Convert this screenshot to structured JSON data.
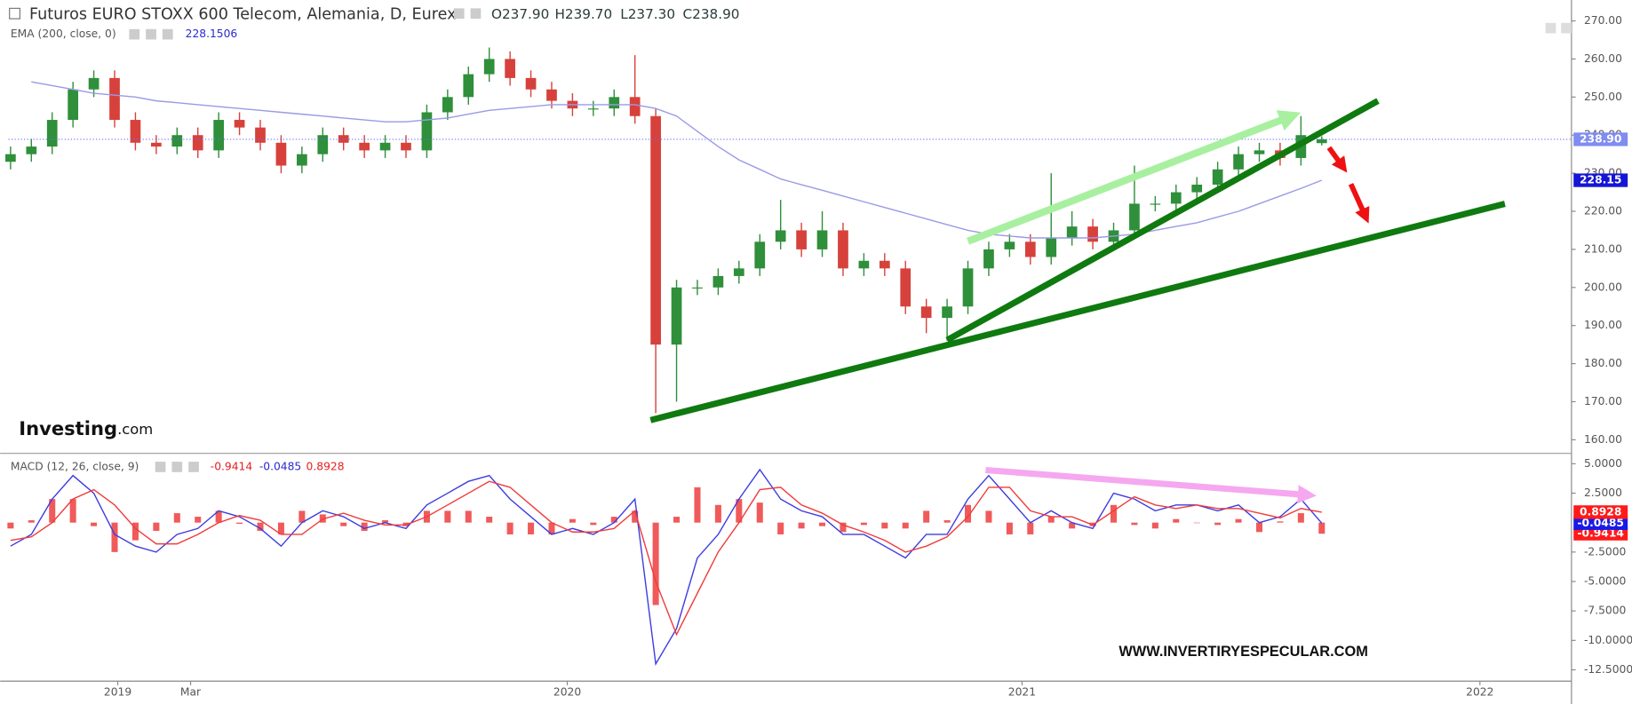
{
  "header": {
    "title": "Futuros EURO STOXX 600 Telecom, Alemania, D, Eurex",
    "ohlc": [
      "O237.90",
      "H239.70",
      "L237.30",
      "C238.90"
    ],
    "logo_bold": "Investing",
    "logo_suffix": ".com",
    "watermark": "WWW.INVERTIRYESPECULAR.COM"
  },
  "chart_data": [
    {
      "type": "candlestick",
      "xlim": [
        -0.1,
        75
      ],
      "ylim": [
        156.7,
        273.3
      ],
      "yticks": [
        {
          "value": 160,
          "label": "160.00"
        },
        {
          "value": 170,
          "label": "170.00"
        },
        {
          "value": 180,
          "label": "180.00"
        },
        {
          "value": 190,
          "label": "190.00"
        },
        {
          "value": 200,
          "label": "200.00"
        },
        {
          "value": 210,
          "label": "210.00"
        },
        {
          "value": 220,
          "label": "220.00"
        },
        {
          "value": 230,
          "label": "230.00"
        },
        {
          "value": 240,
          "label": "240.00"
        },
        {
          "value": 250,
          "label": "250.00"
        },
        {
          "value": 260,
          "label": "260.00"
        },
        {
          "value": 270,
          "label": "270.00"
        }
      ],
      "series": [
        {
          "type": "candlestick",
          "up_color": "#2f8f3a",
          "down_color": "#d7413b",
          "label_color": "#7f8cf0",
          "last_label": "238.90",
          "open": [
            233,
            235,
            237,
            244,
            252,
            255,
            244,
            238,
            237,
            240,
            236,
            244,
            242,
            238,
            232,
            235,
            240,
            238,
            236,
            238,
            236,
            246,
            250,
            256,
            260,
            255,
            252,
            249,
            247,
            247,
            250,
            245,
            185,
            200,
            200,
            203,
            205,
            212,
            215,
            210,
            215,
            205,
            207,
            205,
            195,
            192,
            195,
            205,
            210,
            212,
            208,
            213,
            216,
            212,
            215,
            222,
            222,
            225,
            227,
            231,
            235,
            236,
            234,
            237.9
          ],
          "high": [
            237,
            239,
            246,
            254,
            257,
            257,
            246,
            240,
            242,
            242,
            246,
            246,
            244,
            240,
            237,
            242,
            242,
            240,
            240,
            240,
            248,
            252,
            258,
            263,
            262,
            257,
            254,
            251,
            249,
            252,
            261,
            247,
            202,
            202,
            205,
            207,
            214,
            223,
            217,
            220,
            217,
            209,
            209,
            207,
            197,
            197,
            207,
            212,
            214,
            214,
            230,
            220,
            218,
            217,
            232,
            224,
            227,
            229,
            233,
            237,
            238,
            238,
            245,
            239.7
          ],
          "low": [
            231,
            233,
            235,
            242,
            250,
            242,
            236,
            235,
            235,
            234,
            234,
            240,
            236,
            230,
            230,
            233,
            236,
            234,
            234,
            234,
            234,
            244,
            248,
            254,
            253,
            250,
            247,
            245,
            245,
            245,
            243,
            167,
            170,
            198,
            198,
            201,
            203,
            210,
            208,
            208,
            203,
            203,
            203,
            193,
            188,
            186,
            193,
            203,
            208,
            206,
            206,
            211,
            210,
            210,
            213,
            220,
            220,
            223,
            225,
            229,
            233,
            232,
            232,
            237.3
          ],
          "close": [
            235,
            237,
            244,
            252,
            255,
            244,
            238,
            237,
            240,
            236,
            244,
            242,
            238,
            232,
            235,
            240,
            238,
            236,
            238,
            236,
            246,
            250,
            256,
            260,
            255,
            252,
            249,
            247,
            247,
            250,
            245,
            185,
            200,
            200,
            203,
            205,
            212,
            215,
            210,
            215,
            205,
            207,
            205,
            195,
            192,
            195,
            205,
            210,
            212,
            208,
            213,
            216,
            212,
            215,
            222,
            222,
            225,
            227,
            231,
            235,
            236,
            234,
            240,
            238.9
          ]
        },
        {
          "type": "line",
          "name": "EMA (200, close, 0)",
          "color": "#9a9ae6",
          "label_color": "#1515d6",
          "legend_value": "228.1506",
          "last_label": "228.15",
          "values": [
            null,
            254,
            253,
            252,
            251,
            250.5,
            250,
            249,
            248.5,
            248,
            247.5,
            247,
            246.5,
            246,
            245.5,
            245,
            244.5,
            244,
            243.5,
            243.5,
            244,
            244.5,
            245.5,
            246.5,
            247,
            247.5,
            248,
            248,
            248,
            248,
            248,
            247,
            245,
            241,
            237,
            233.5,
            231,
            228.5,
            227,
            225.5,
            224,
            222.5,
            221,
            219.5,
            218,
            216.5,
            215,
            214,
            213.5,
            213,
            213,
            213,
            213,
            213.5,
            214,
            215,
            216,
            217,
            218.5,
            220,
            222,
            224,
            226,
            228.1506
          ]
        }
      ]
    },
    {
      "type": "macd",
      "title": "MACD (12, 26, close, 9)",
      "xlim": [
        -0.1,
        75
      ],
      "ylim": [
        -13.46,
        5.79
      ],
      "yticks": [
        {
          "value": 5,
          "label": "5.0000"
        },
        {
          "value": 2.5,
          "label": "2.5000"
        },
        {
          "value": -2.5,
          "label": "-2.5000"
        },
        {
          "value": -5,
          "label": "-5.0000"
        },
        {
          "value": -7.5,
          "label": "-7.5000"
        },
        {
          "value": -10,
          "label": "-10.0000"
        },
        {
          "value": -12.5,
          "label": "-12.5000"
        }
      ],
      "xticks": [
        {
          "value": 5.15,
          "label": "2019"
        },
        {
          "value": 8.65,
          "label": "Mar"
        },
        {
          "value": 26.75,
          "label": "2020"
        },
        {
          "value": 48.6,
          "label": "2021"
        },
        {
          "value": 70.6,
          "label": "2022"
        }
      ],
      "series": [
        {
          "type": "bar",
          "color": "#f05a5a",
          "label_color": "#ff1a1a",
          "legend_value": "-0.9414",
          "values": [
            -0.5,
            0.2,
            2,
            2,
            -0.3,
            -2.5,
            -1.5,
            -0.7,
            0.8,
            0.5,
            1,
            -0.1,
            -0.7,
            -1,
            1,
            0.7,
            -0.3,
            -0.7,
            0.2,
            -0.3,
            1,
            1,
            1,
            0.5,
            -1,
            -1,
            -1,
            0.3,
            -0.2,
            0.5,
            1,
            -7,
            0.5,
            3,
            1.5,
            2,
            1.7,
            -1,
            -0.5,
            -0.3,
            -0.8,
            -0.2,
            -0.5,
            -0.5,
            1,
            0.2,
            1.5,
            1,
            -1,
            -1,
            0.5,
            -0.5,
            -0.3,
            1.5,
            -0.2,
            -0.5,
            0.3,
            0,
            -0.2,
            0.3,
            -0.8,
            0.1,
            0.8,
            -0.9414
          ]
        },
        {
          "type": "line",
          "color": "#3d3de0",
          "label_color": "#1a1ae6",
          "legend_value": "-0.0485",
          "values": [
            -2,
            -1,
            2,
            4,
            2.5,
            -1,
            -2,
            -2.5,
            -1,
            -0.5,
            1,
            0.5,
            -0.5,
            -2,
            0,
            1,
            0.5,
            -0.5,
            0,
            -0.5,
            1.5,
            2.5,
            3.5,
            4,
            2,
            0.5,
            -1,
            -0.5,
            -1,
            0,
            2,
            -12,
            -9,
            -3,
            -1,
            2,
            4.5,
            2,
            1,
            0.5,
            -1,
            -1,
            -2,
            -3,
            -1,
            -1,
            2,
            4,
            2,
            0,
            1,
            0,
            -0.5,
            2.5,
            2,
            1,
            1.5,
            1.5,
            1,
            1.5,
            0,
            0.5,
            2,
            -0.0485
          ]
        },
        {
          "type": "line",
          "color": "#f03c3c",
          "label_color": "#ff1a1a",
          "legend_value": "0.8928",
          "values": [
            -1.5,
            -1.2,
            0,
            2,
            2.8,
            1.5,
            -0.5,
            -1.8,
            -1.8,
            -1,
            0,
            0.6,
            0.2,
            -1,
            -1,
            0.3,
            0.8,
            0.2,
            -0.2,
            -0.2,
            0.5,
            1.5,
            2.5,
            3.5,
            3,
            1.5,
            0,
            -0.8,
            -0.8,
            -0.5,
            1,
            -5,
            -9.5,
            -6,
            -2.5,
            0,
            2.8,
            3,
            1.5,
            0.8,
            -0.2,
            -0.8,
            -1.5,
            -2.5,
            -2,
            -1.2,
            0.5,
            3,
            3,
            1,
            0.5,
            0.5,
            -0.2,
            1,
            2.2,
            1.5,
            1.2,
            1.5,
            1.2,
            1.2,
            0.8,
            0.4,
            1.2,
            0.8928
          ]
        }
      ]
    }
  ]
}
